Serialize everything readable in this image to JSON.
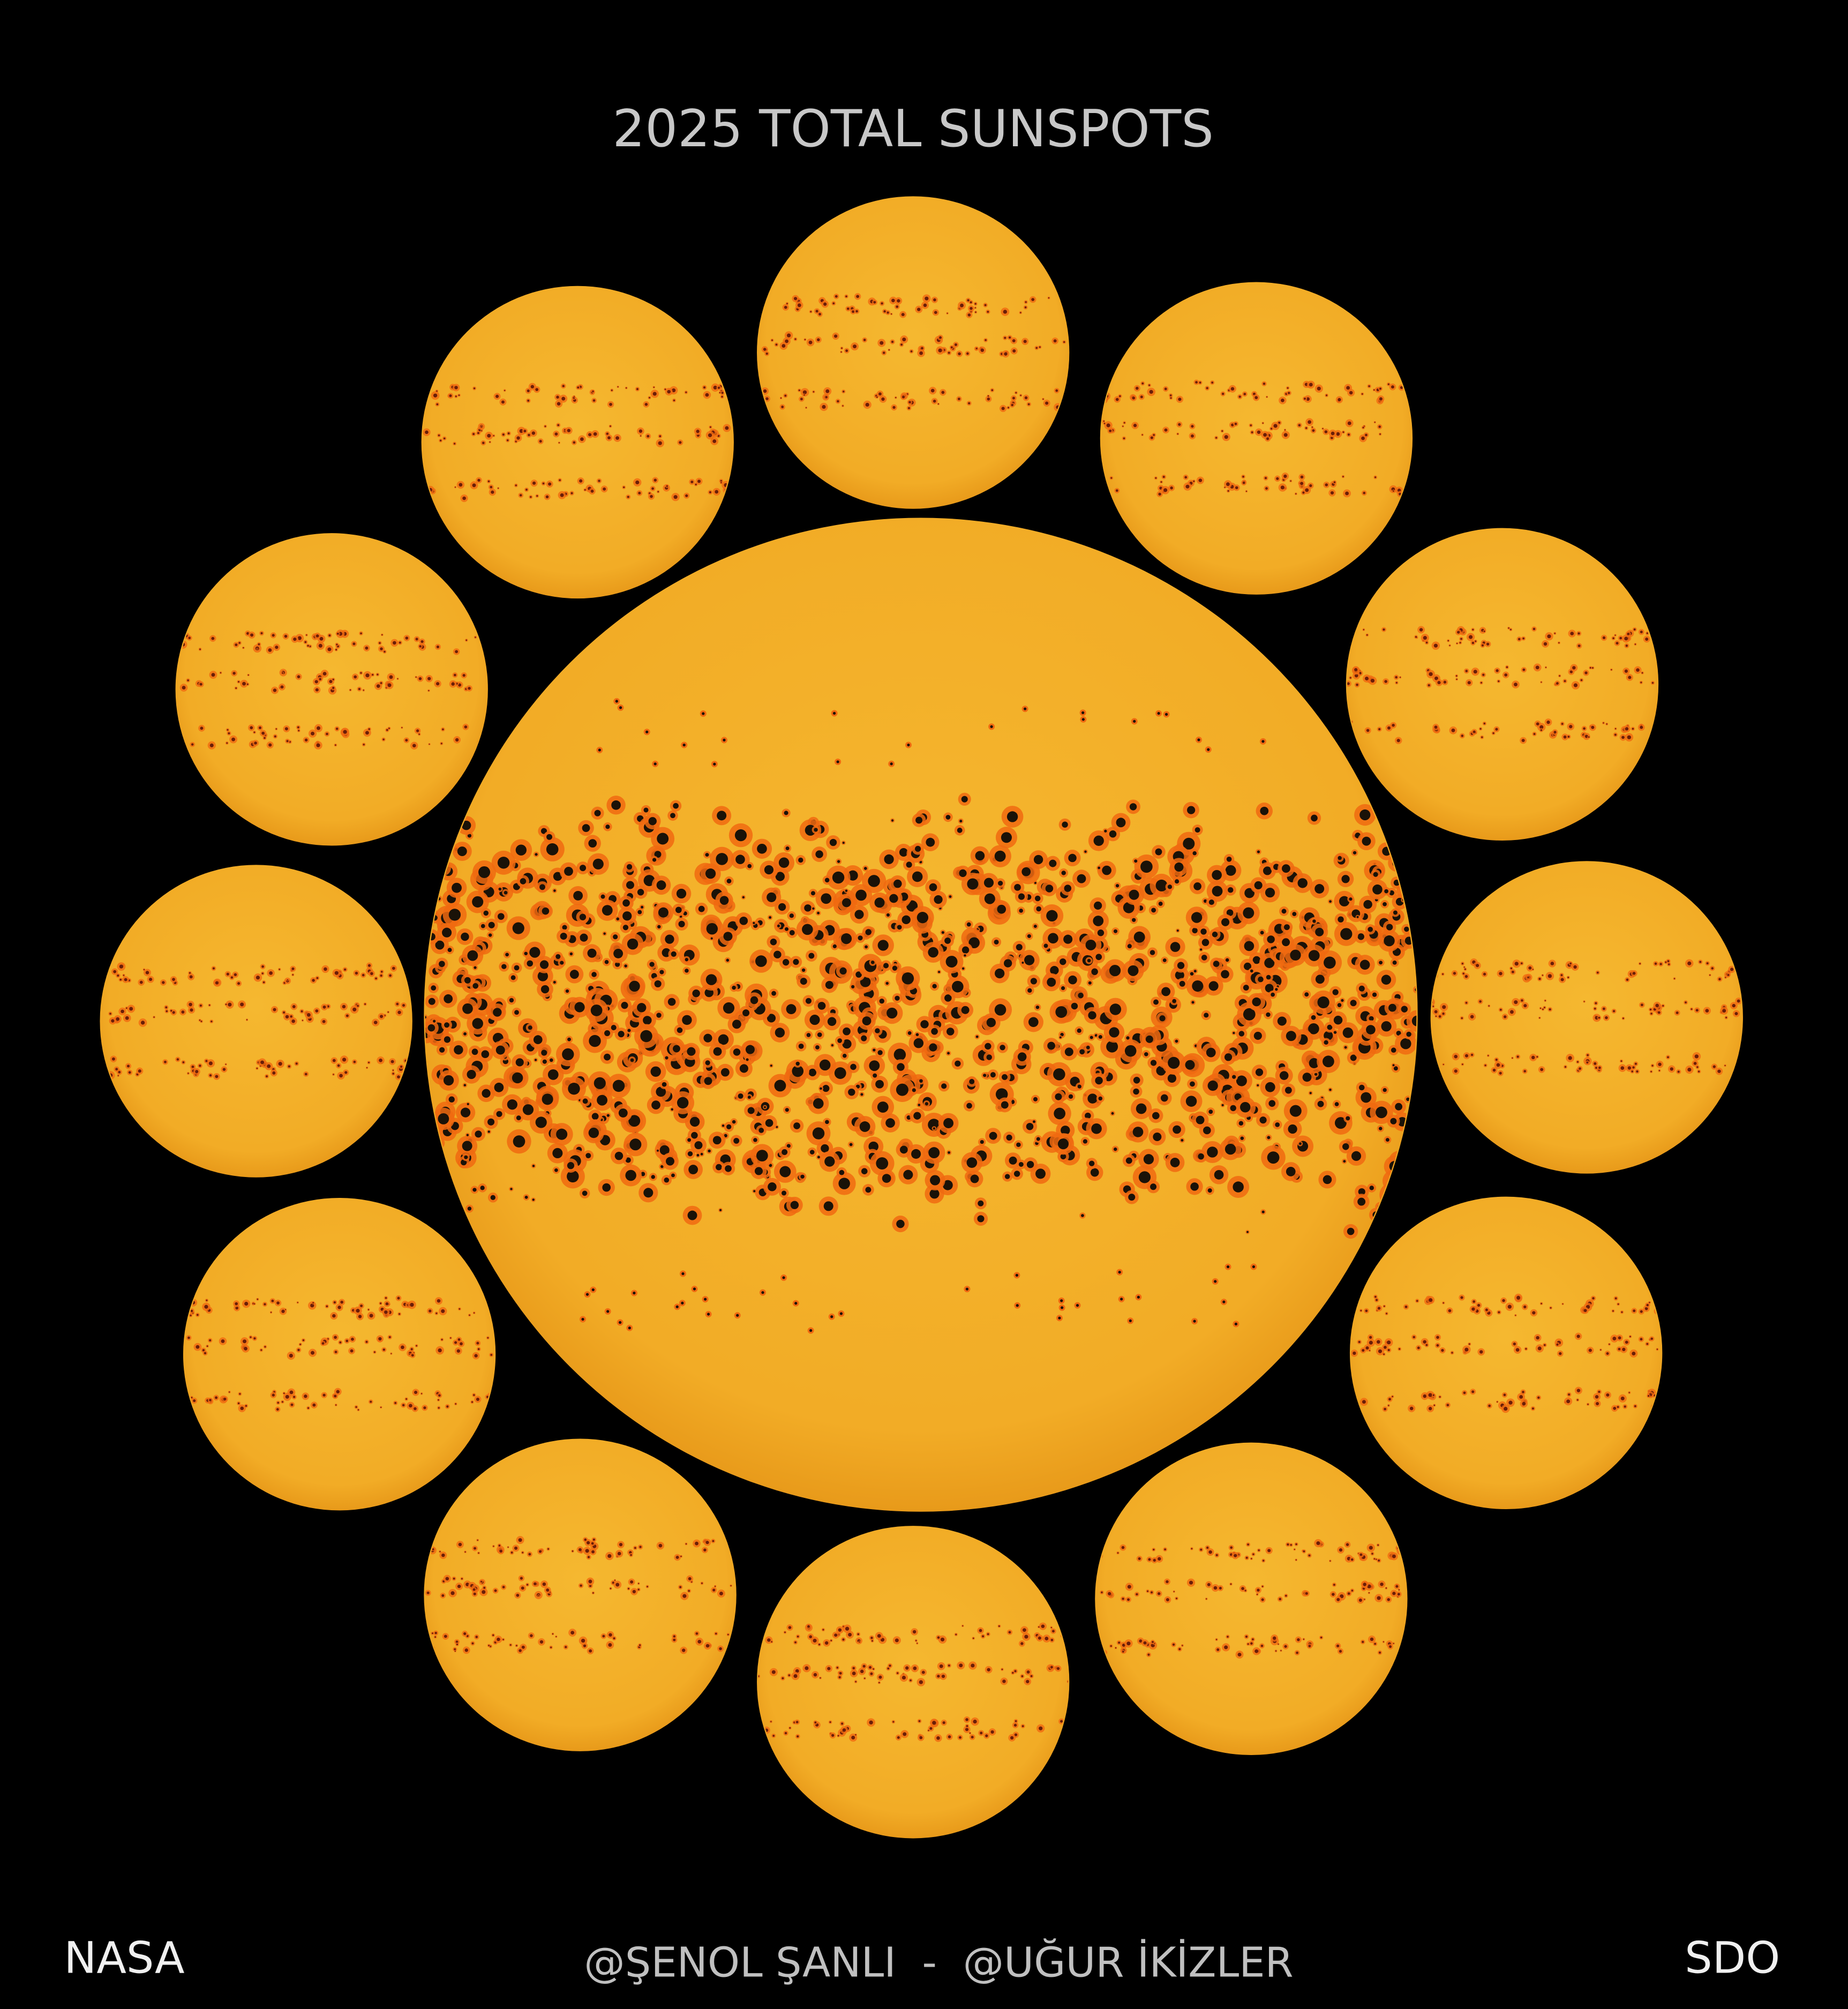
{
  "title": "2025 TOTAL SUNSPOTS",
  "footer": {
    "left": "NASA",
    "credits": "@ŞENOL ŞANLI  -  @UĞUR İKİZLER",
    "right": "SDO"
  },
  "colors": {
    "background": "#000000",
    "sun_disk": "#f2b02c",
    "sun_disk_edge": "#e89a1a",
    "penumbra": "#f06a10",
    "umbra": "#1a1208",
    "title_text": "#c8c8c8",
    "credit_text": "#c0c0c0",
    "corner_text": "#f0f0f0"
  },
  "disks": {
    "composite": "full-year composite",
    "monthly_count": 12
  }
}
